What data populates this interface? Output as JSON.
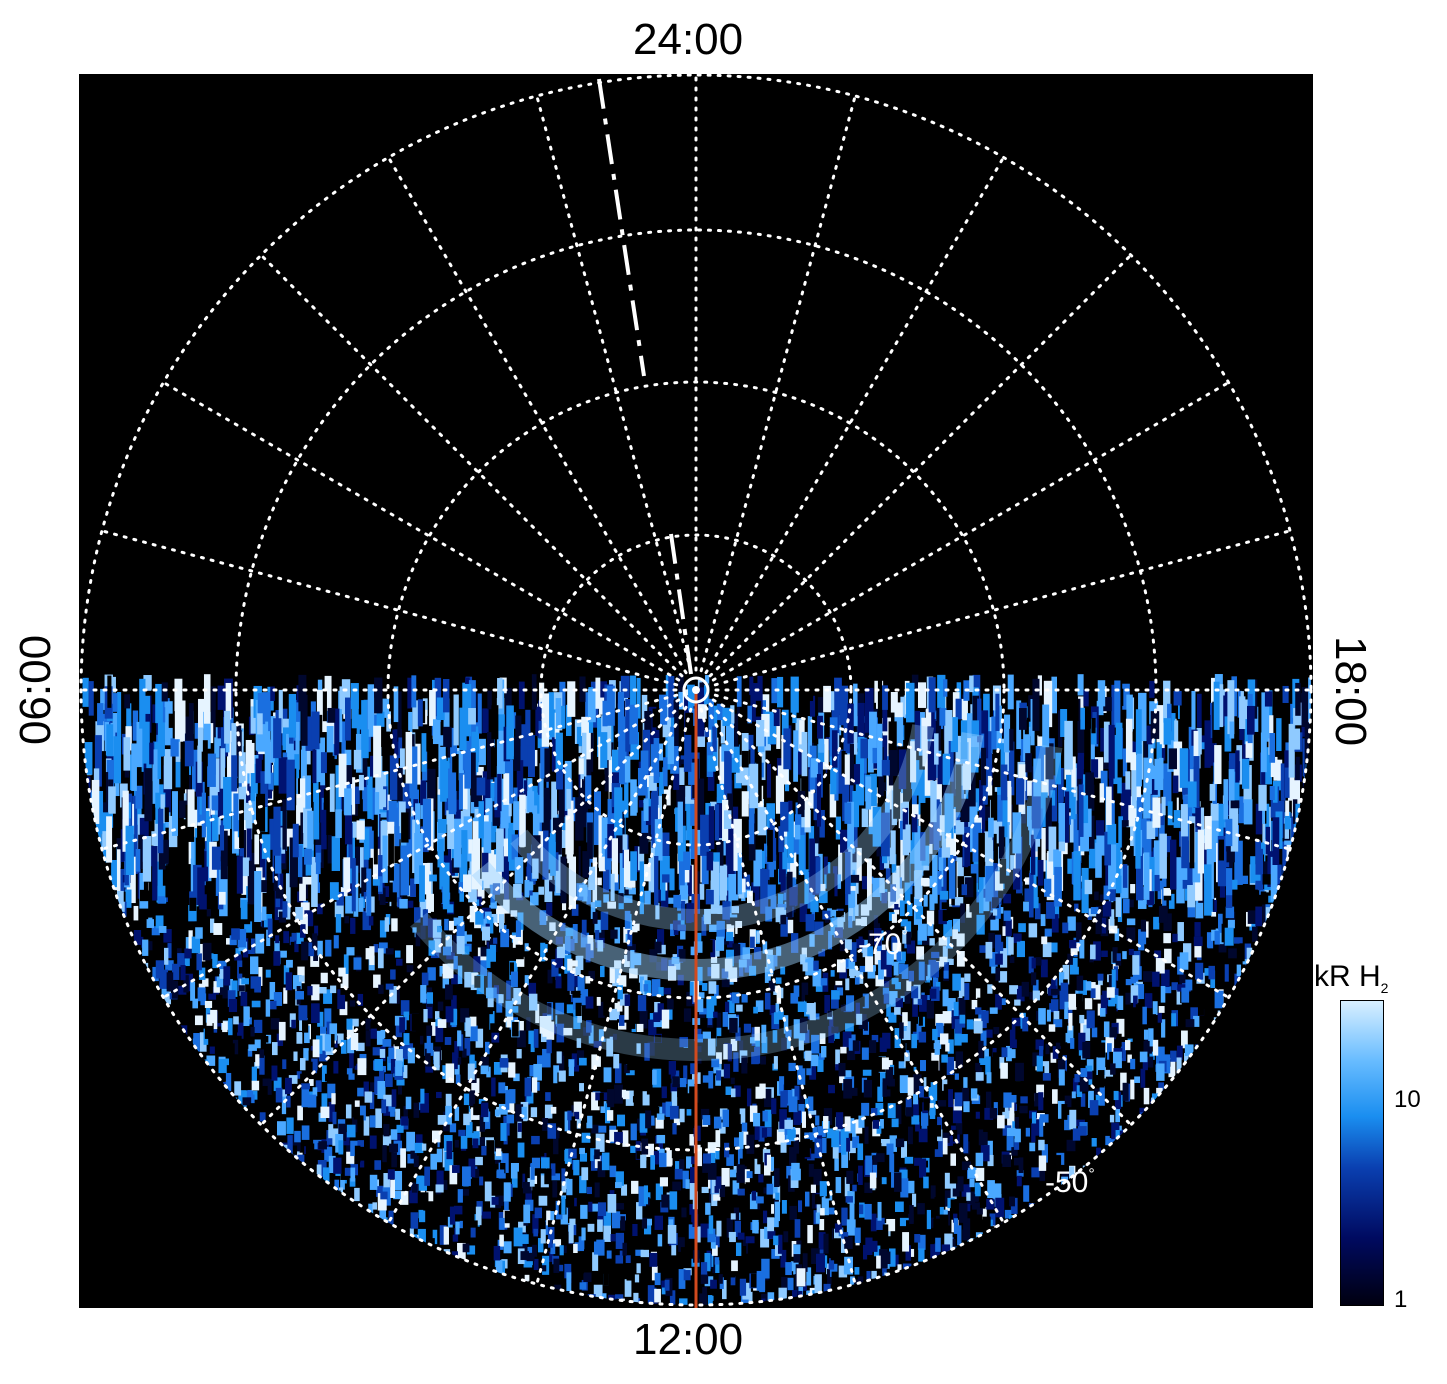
{
  "figure": {
    "local_time_labels": {
      "top": "24:00",
      "bottom": "12:00",
      "left": "06:00",
      "right": "18:00"
    },
    "latitude_labels": [
      "-70",
      "-50"
    ],
    "degree_symbol": "°",
    "colorbar": {
      "title": "kR H",
      "title_subscript": "2",
      "tick_labels": [
        "10",
        "1"
      ],
      "scale": "log",
      "colors": [
        "#000010",
        "#000a60",
        "#0a3fb0",
        "#1a8ef0",
        "#66bbff",
        "#d8efff"
      ]
    },
    "colors": {
      "background": "#000000",
      "grid": "#ffffff",
      "meridian_line": "#d24a1e"
    }
  }
}
